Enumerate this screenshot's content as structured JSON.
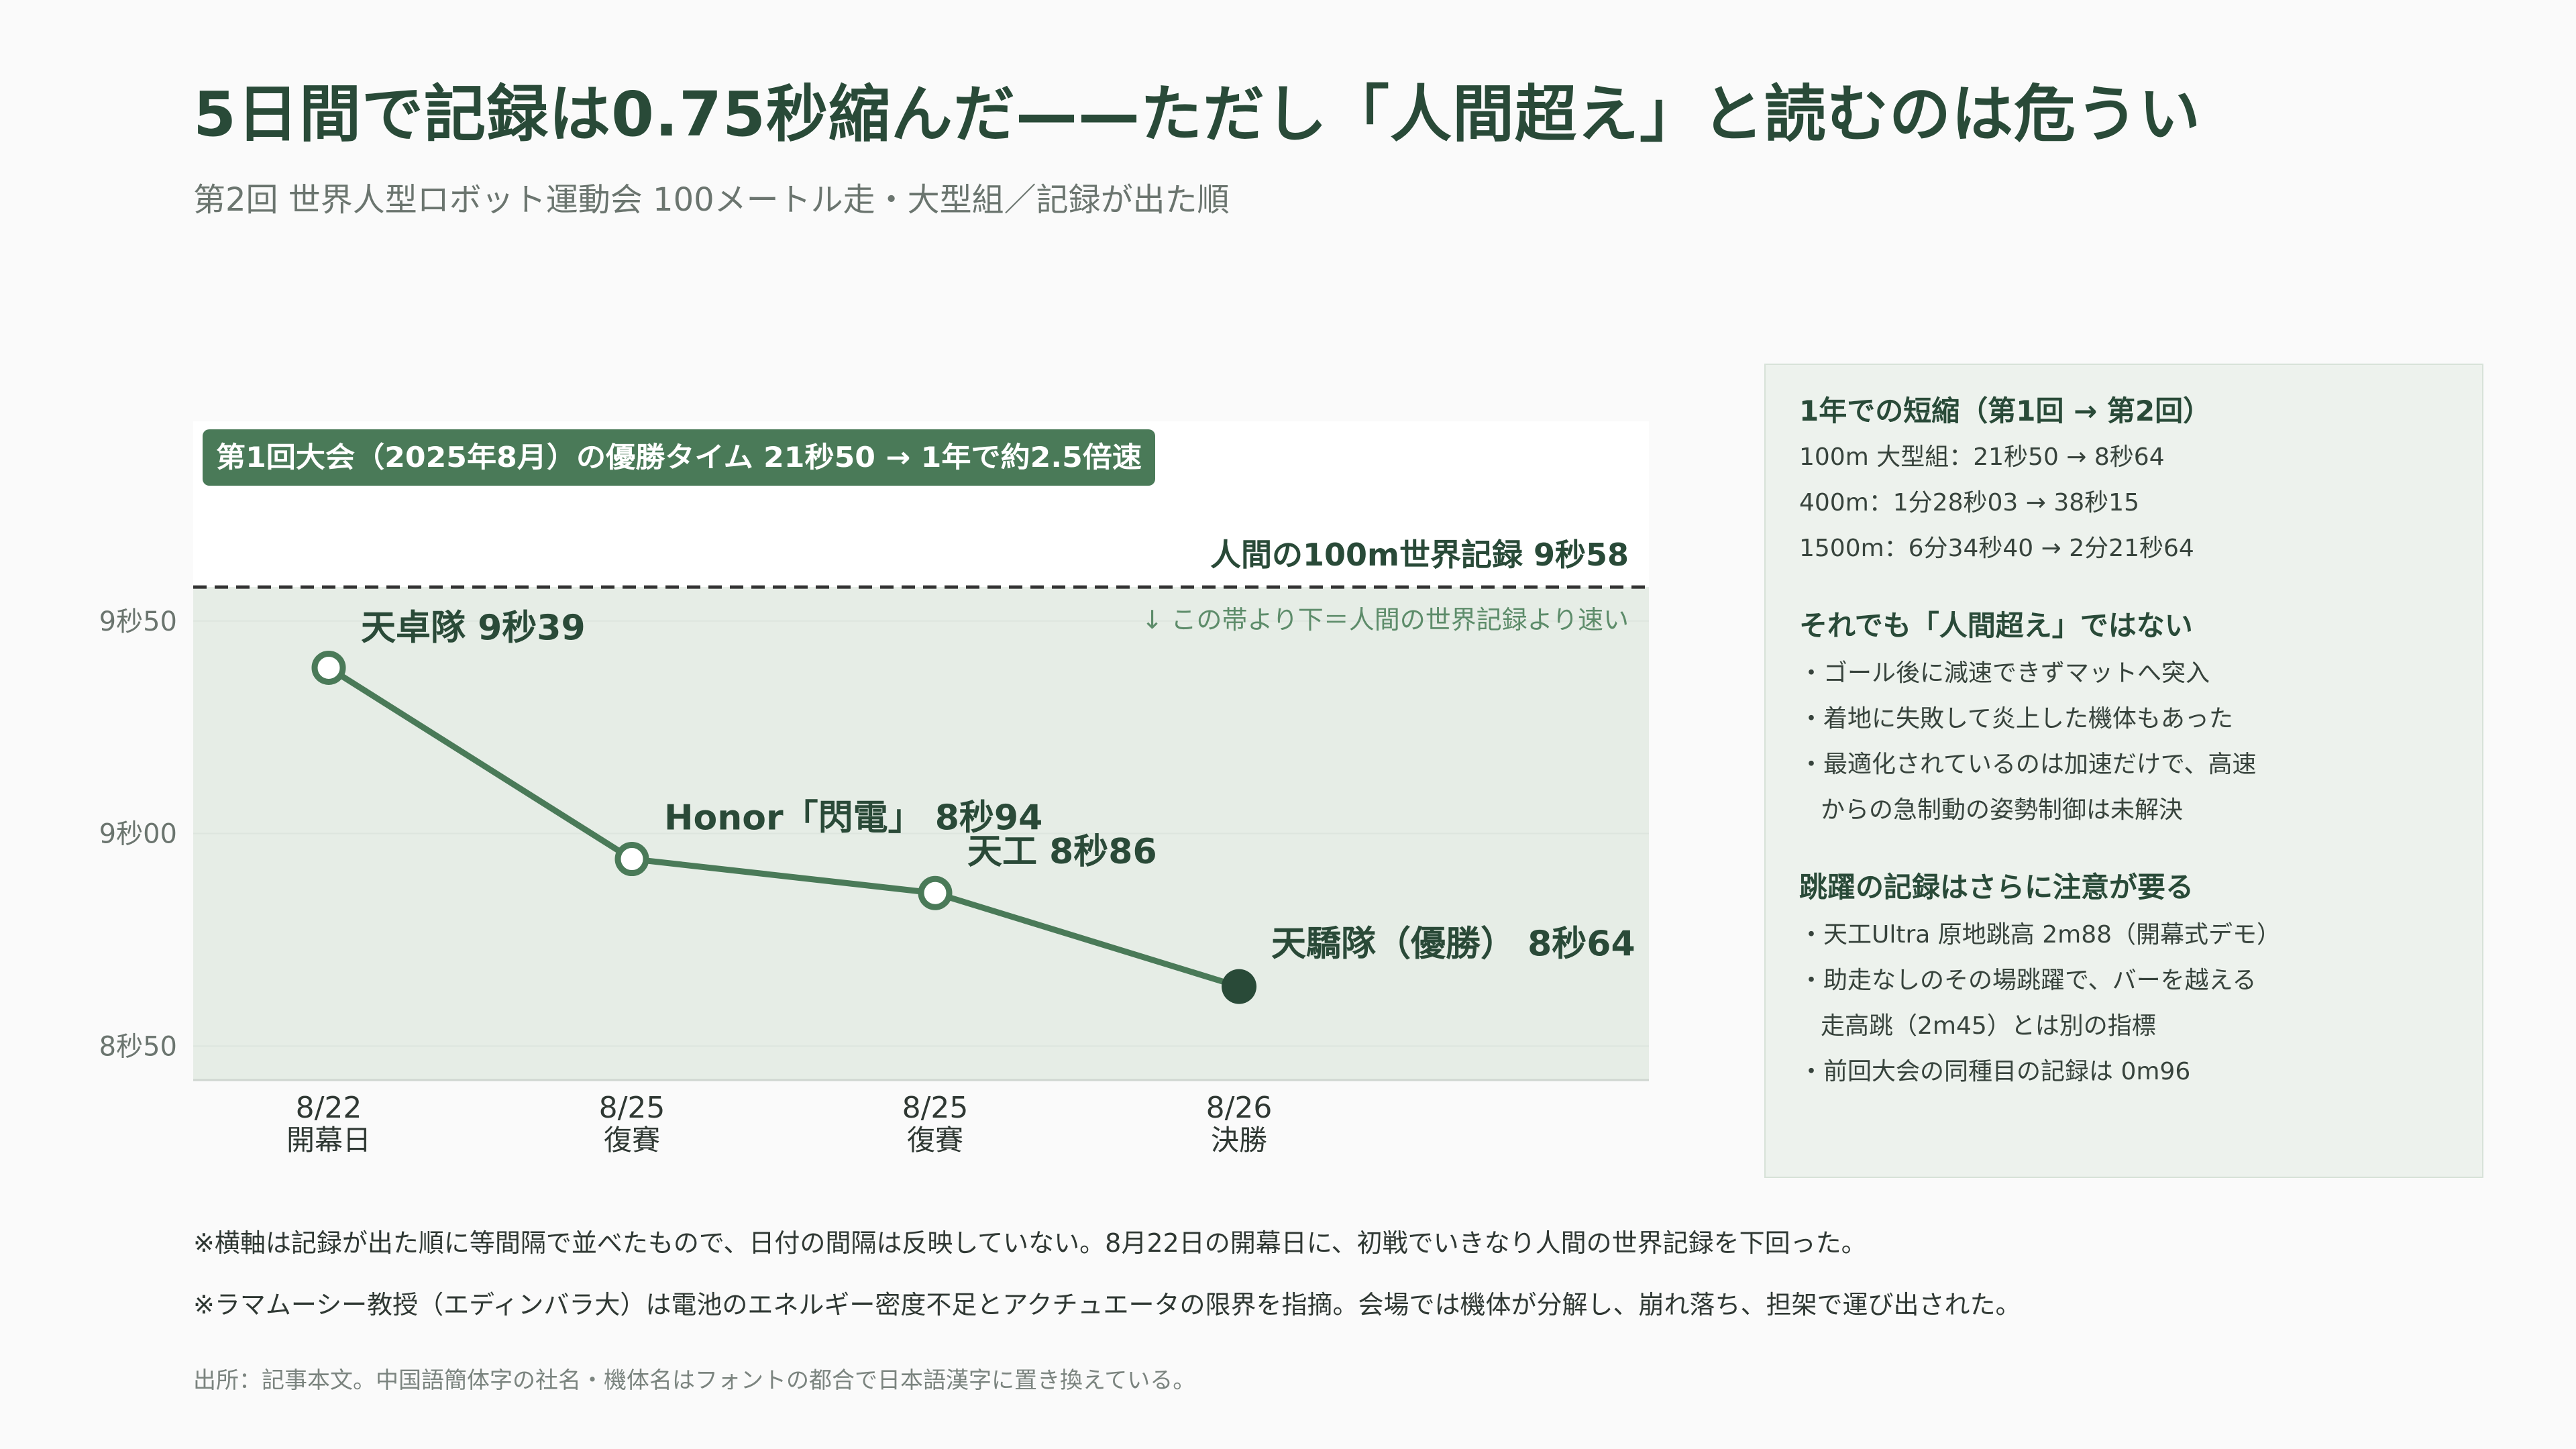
{
  "title": "5日間で記録は0.75秒縮んだ——ただし「人間超え」と読むのは危うい",
  "subtitle": "第2回 世界人型ロボット運動会 100メートル走・大型組／記録が出た順",
  "colors": {
    "line": "#4a7a58",
    "winner_marker": "#294a38",
    "band_fill": "#e6ede6",
    "callout_bg": "#4a7a58",
    "reference_line": "#333333",
    "panel_bg": "#edf2ed"
  },
  "chart_data": {
    "type": "line",
    "y_unit": "秒",
    "ylim": [
      8.42,
      9.97
    ],
    "yticks": [
      8.5,
      9.0,
      9.5
    ],
    "ytick_labels": [
      "8秒50",
      "9秒00",
      "9秒50"
    ],
    "grid": true,
    "categories": [
      {
        "date": "8/22",
        "round": "開幕日"
      },
      {
        "date": "8/25",
        "round": "復賽"
      },
      {
        "date": "8/25",
        "round": "復賽"
      },
      {
        "date": "8/26",
        "round": "決勝"
      }
    ],
    "points": [
      {
        "team": "天卓隊",
        "time_label": "9秒39",
        "value": 9.39,
        "winner": false
      },
      {
        "team": "Honor「閃電」",
        "time_label": "8秒94",
        "value": 8.94,
        "winner": false
      },
      {
        "team": "天工",
        "time_label": "8秒86",
        "value": 8.86,
        "winner": false
      },
      {
        "team": "天驕隊（優勝）",
        "time_label": "8秒64",
        "value": 8.64,
        "winner": true
      }
    ],
    "reference_line": {
      "value": 9.58,
      "label": "人間の100m世界記録 9秒58",
      "band_label": "↓ この帯より下＝人間の世界記録より速い"
    },
    "callout": "第1回大会（2025年8月）の優勝タイム 21秒50 → 1年で約2.5倍速"
  },
  "side_panel": {
    "section1": {
      "heading": "1年での短縮（第1回 → 第2回）",
      "items": [
        "100m 大型組：21秒50 → 8秒64",
        "400m：1分28秒03 → 38秒15",
        "1500m：6分34秒40 → 2分21秒64"
      ]
    },
    "section2": {
      "heading": "それでも「人間超え」ではない",
      "items": [
        "ゴール後に減速できずマットへ突入",
        "着地に失敗して炎上した機体もあった",
        "最適化されているのは加速だけで、高速",
        "からの急制動の姿勢制御は未解決"
      ]
    },
    "section3": {
      "heading": "跳躍の記録はさらに注意が要る",
      "items": [
        "天工Ultra 原地跳高 2m88（開幕式デモ）",
        "助走なしのその場跳躍で、バーを越える",
        "走高跳（2m45）とは別の指標",
        "前回大会の同種目の記録は 0m96"
      ]
    }
  },
  "notes": [
    "※横軸は記録が出た順に等間隔で並べたもので、日付の間隔は反映していない。8月22日の開幕日に、初戦でいきなり人間の世界記録を下回った。",
    "※ラマムーシー教授（エディンバラ大）は電池のエネルギー密度不足とアクチュエータの限界を指摘。会場では機体が分解し、崩れ落ち、担架で運び出された。"
  ],
  "source": "出所：記事本文。中国語簡体字の社名・機体名はフォントの都合で日本語漢字に置き換えている。"
}
